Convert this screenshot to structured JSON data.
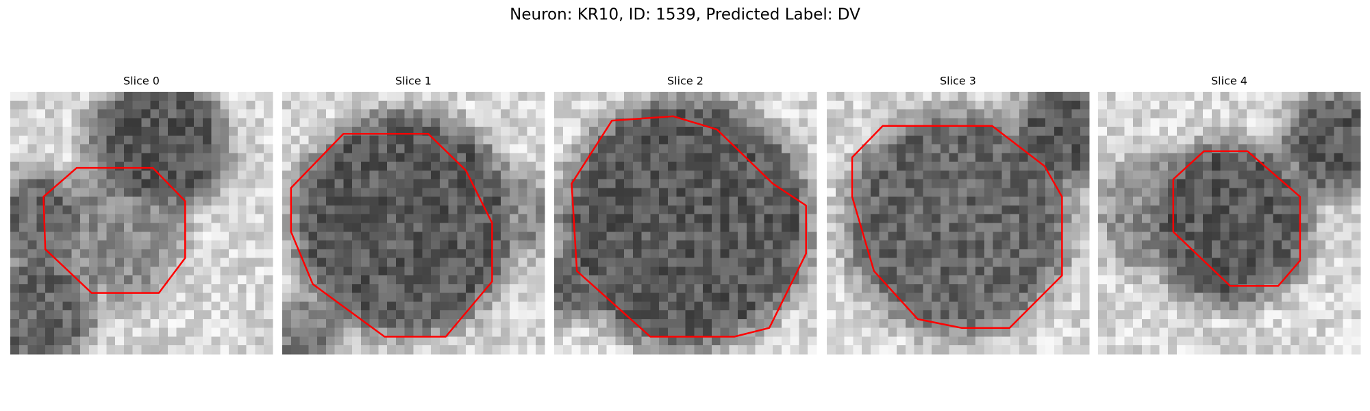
{
  "title": "Neuron: KR10, ID: 1539, Predicted Label: DV",
  "panels": [
    {
      "title": "Slice 0"
    },
    {
      "title": "Slice 1"
    },
    {
      "title": "Slice 2"
    },
    {
      "title": "Slice 3"
    },
    {
      "title": "Slice 4"
    }
  ]
}
